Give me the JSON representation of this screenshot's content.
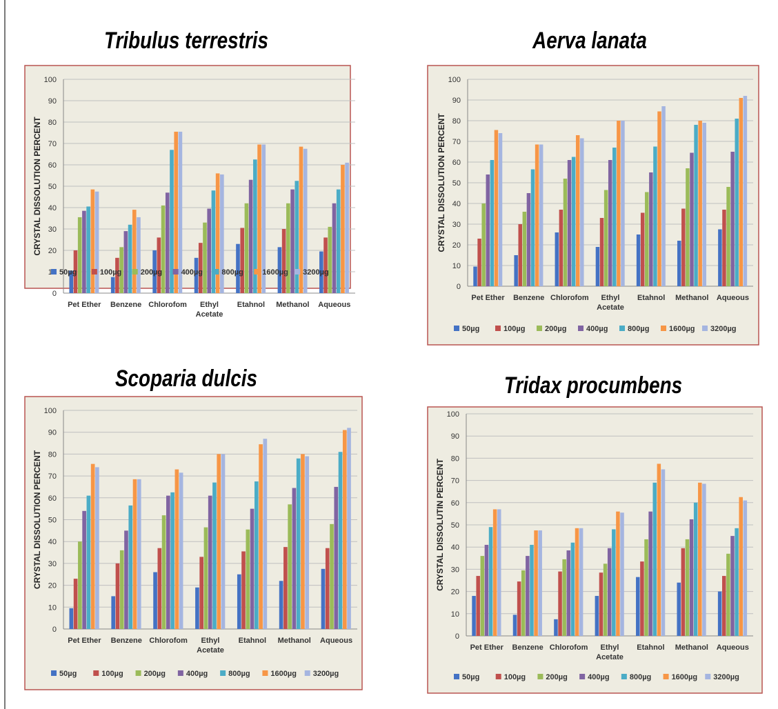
{
  "colors": [
    "#4472C4",
    "#C0504D",
    "#9BBB59",
    "#8064A2",
    "#4BACC6",
    "#F79646",
    "#A5B5E0"
  ],
  "chart_data": [
    {
      "type": "bar",
      "title": "Tribulus terrestris",
      "ylabel": "CRYSTAL DISSOLUTION PERCENT",
      "ylim": [
        0,
        100
      ],
      "yticks": [
        "0",
        "10",
        "20",
        "30",
        "40",
        "50",
        "60",
        "70",
        "80",
        "90",
        "100"
      ],
      "categories": [
        [
          "Pet Ether"
        ],
        [
          "Benzene"
        ],
        [
          "Chlorofom"
        ],
        [
          "Ethyl",
          "Acetate"
        ],
        [
          "Etahnol"
        ],
        [
          "Methanol"
        ],
        [
          "Aqueous"
        ]
      ],
      "legend_position": "bottom",
      "grid": true,
      "series": [
        {
          "name": "50µg",
          "values": [
            10.5,
            7.5,
            20,
            16.5,
            23,
            21.5,
            19.5
          ]
        },
        {
          "name": "100µg",
          "values": [
            20,
            16.5,
            26,
            23.5,
            30.5,
            30,
            26
          ]
        },
        {
          "name": "200µg",
          "values": [
            35.5,
            21.5,
            41,
            33,
            42,
            42,
            31
          ]
        },
        {
          "name": "400µg",
          "values": [
            38.5,
            29,
            47,
            39.5,
            53,
            48.5,
            42
          ]
        },
        {
          "name": "800µg",
          "values": [
            40.5,
            32,
            67,
            48,
            62.5,
            52.5,
            48.5
          ]
        },
        {
          "name": "1600µg",
          "values": [
            48.5,
            39,
            75.5,
            56,
            69.5,
            68.5,
            60
          ]
        },
        {
          "name": "3200µg",
          "values": [
            47.5,
            35.5,
            75.5,
            55.5,
            69.5,
            67.5,
            61
          ]
        }
      ]
    },
    {
      "type": "bar",
      "title": "Aerva lanata",
      "ylabel": "CRYSTAL DISSOLUTION PERCENT",
      "ylim": [
        0,
        100
      ],
      "yticks": [
        "0",
        "10",
        "20",
        "30",
        "40",
        "50",
        "60",
        "70",
        "80",
        "90",
        "100"
      ],
      "categories": [
        [
          "Pet Ether"
        ],
        [
          "Benzene"
        ],
        [
          "Chlorofom"
        ],
        [
          "Ethyl",
          "Acetate"
        ],
        [
          "Etahnol"
        ],
        [
          "Methanol"
        ],
        [
          "Aqueous"
        ]
      ],
      "legend_position": "bottom",
      "grid": true,
      "series": [
        {
          "name": "50µg",
          "values": [
            9.5,
            15,
            26,
            19,
            25,
            22,
            27.5
          ]
        },
        {
          "name": "100µg",
          "values": [
            23,
            30,
            37,
            33,
            35.5,
            37.5,
            37
          ]
        },
        {
          "name": "200µg",
          "values": [
            40,
            36,
            52,
            46.5,
            45.5,
            57,
            48
          ]
        },
        {
          "name": "400µg",
          "values": [
            54,
            45,
            61,
            61,
            55,
            64.5,
            65
          ]
        },
        {
          "name": "800µg",
          "values": [
            61,
            56.5,
            62.5,
            67,
            67.5,
            78,
            81
          ]
        },
        {
          "name": "1600µg",
          "values": [
            75.5,
            68.5,
            73,
            80,
            84.5,
            80,
            91
          ]
        },
        {
          "name": "3200µg",
          "values": [
            74,
            68.5,
            71.5,
            80,
            87,
            79,
            92
          ]
        }
      ]
    },
    {
      "type": "bar",
      "title": "Scoparia dulcis",
      "ylabel": "CRYSTAL DISSOLUTION PERCENT",
      "ylim": [
        0,
        100
      ],
      "yticks": [
        "0",
        "10",
        "20",
        "30",
        "40",
        "50",
        "60",
        "70",
        "80",
        "90",
        "100"
      ],
      "categories": [
        [
          "Pet Ether"
        ],
        [
          "Benzene"
        ],
        [
          "Chlorofom"
        ],
        [
          "Ethyl",
          "Acetate"
        ],
        [
          "Etahnol"
        ],
        [
          "Methanol"
        ],
        [
          "Aqueous"
        ]
      ],
      "legend_position": "bottom",
      "grid": true,
      "series": [
        {
          "name": "50µg",
          "values": [
            9.5,
            15,
            26,
            19,
            25,
            22,
            27.5
          ]
        },
        {
          "name": "100µg",
          "values": [
            23,
            30,
            37,
            33,
            35.5,
            37.5,
            37
          ]
        },
        {
          "name": "200µg",
          "values": [
            40,
            36,
            52,
            46.5,
            45.5,
            57,
            48
          ]
        },
        {
          "name": "400µg",
          "values": [
            54,
            45,
            61,
            61,
            55,
            64.5,
            65
          ]
        },
        {
          "name": "800µg",
          "values": [
            61,
            56.5,
            62.5,
            67,
            67.5,
            78,
            81
          ]
        },
        {
          "name": "1600µg",
          "values": [
            75.5,
            68.5,
            73,
            80,
            84.5,
            80,
            91
          ]
        },
        {
          "name": "3200µg",
          "values": [
            74,
            68.5,
            71.5,
            80,
            87,
            79,
            92
          ]
        }
      ]
    },
    {
      "type": "bar",
      "title": "Tridax procumbens",
      "ylabel": "CRYSTAL DISSOLUTIN PERCENT",
      "ylim": [
        0,
        100
      ],
      "yticks": [
        "0",
        "10",
        "20",
        "30",
        "40",
        "50",
        "60",
        "70",
        "80",
        "90",
        "100"
      ],
      "categories": [
        [
          "Pet Ether"
        ],
        [
          "Benzene"
        ],
        [
          "Chlorofom"
        ],
        [
          "Ethyl",
          "Acetate"
        ],
        [
          "Etahnol"
        ],
        [
          "Methanol"
        ],
        [
          "Aqueous"
        ]
      ],
      "legend_position": "bottom",
      "grid": true,
      "series": [
        {
          "name": "50µg",
          "values": [
            18,
            9.5,
            7.5,
            18,
            26.5,
            24,
            20
          ]
        },
        {
          "name": "100µg",
          "values": [
            27,
            24.5,
            29,
            28.5,
            33.5,
            39.5,
            27
          ]
        },
        {
          "name": "200µg",
          "values": [
            36,
            29.5,
            34.5,
            32.5,
            43.5,
            43.5,
            37
          ]
        },
        {
          "name": "400µg",
          "values": [
            41,
            36,
            38.5,
            39.5,
            56,
            52.5,
            45
          ]
        },
        {
          "name": "800µg",
          "values": [
            49,
            41,
            42,
            48,
            69,
            60,
            48.5
          ]
        },
        {
          "name": "1600µg",
          "values": [
            57,
            47.5,
            48.5,
            56,
            77.5,
            69,
            62.5
          ]
        },
        {
          "name": "3200µg",
          "values": [
            57,
            47.5,
            48.5,
            55.5,
            75,
            68.5,
            61
          ]
        }
      ]
    }
  ]
}
